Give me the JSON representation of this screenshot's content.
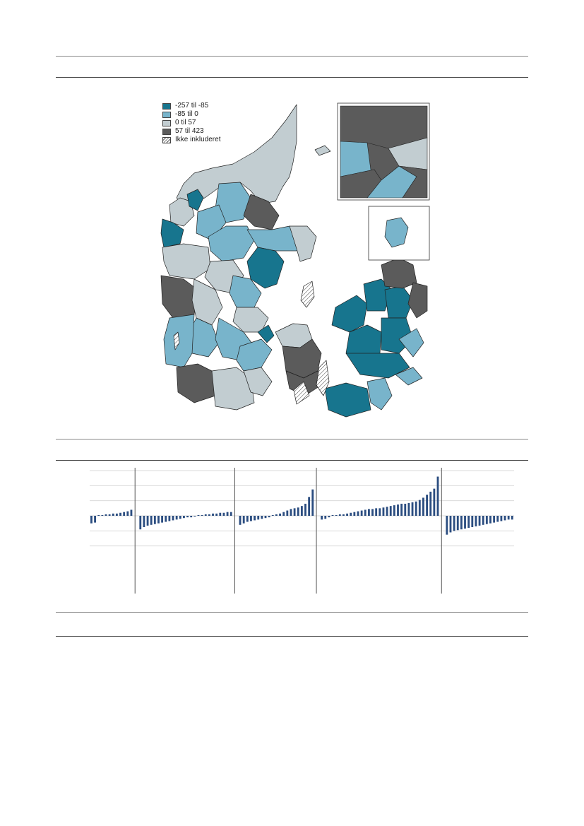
{
  "legend": {
    "items": [
      {
        "label": "-257 til -85",
        "color": "#17758e"
      },
      {
        "label": "-85 til 0",
        "color": "#78b4cb"
      },
      {
        "label": "0 til 57",
        "color": "#c2cdd1"
      },
      {
        "label": "57 til 423",
        "color": "#5b5b5b"
      },
      {
        "label": "Ikke inkluderet",
        "color": "hatch"
      }
    ]
  },
  "chart_data": {
    "type": "bar",
    "series_color": "#2b4d80",
    "groups": [
      {
        "values": [
          -10,
          -9,
          1,
          1,
          2,
          2,
          3,
          3,
          4,
          5,
          6,
          8
        ]
      },
      {
        "values": [
          -18,
          -15,
          -13,
          -12,
          -11,
          -10,
          -9,
          -8,
          -7,
          -6,
          -5,
          -4,
          -3,
          -2,
          -2,
          -1,
          1,
          1,
          2,
          2,
          3,
          3,
          4,
          4,
          5,
          5
        ]
      },
      {
        "values": [
          -12,
          -10,
          -8,
          -7,
          -6,
          -5,
          -4,
          -3,
          -2,
          1,
          2,
          3,
          5,
          7,
          9,
          10,
          11,
          13,
          16,
          25,
          35
        ]
      },
      {
        "values": [
          -5,
          -4,
          -2,
          1,
          1,
          2,
          2,
          3,
          4,
          5,
          6,
          7,
          8,
          9,
          9,
          10,
          10,
          11,
          12,
          13,
          14,
          15,
          16,
          16,
          17,
          18,
          19,
          21,
          24,
          28,
          32,
          36,
          52
        ]
      },
      {
        "values": [
          -25,
          -22,
          -20,
          -19,
          -18,
          -17,
          -16,
          -15,
          -14,
          -13,
          -12,
          -11,
          -10,
          -9,
          -8,
          -7,
          -6,
          -5,
          -5
        ]
      }
    ],
    "ylim": [
      -40,
      60
    ]
  }
}
